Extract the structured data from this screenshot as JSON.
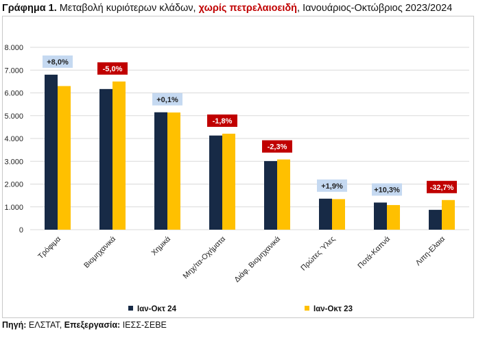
{
  "title": {
    "prefix": "Γράφημα 1.",
    "part1": " Μεταβολή κυριότερων κλάδων, ",
    "highlight": "χωρίς πετρελαιοειδή",
    "part2": ", Ιανουάριος-Οκτώβριος 2023/2024"
  },
  "source": {
    "label1": "Πηγή:",
    "value1": " ΕΛΣΤΑΤ, ",
    "label2": "Επεξεργασία:",
    "value2": " ΙΕΣΣ-ΣΕΒΕ"
  },
  "colors": {
    "series_2024": "#172a46",
    "series_2023": "#ffc000",
    "badge_positive_bg": "#c5d9f1",
    "badge_negative_bg": "#c00000",
    "grid": "#d9d9d9"
  },
  "chart_data": {
    "type": "bar",
    "categories": [
      "Τρόφιμα",
      "Βιομηχανικά",
      "Χημικά",
      "Μηχ/τα-Οχήματα",
      "Διάφ. Βιομηχανικά",
      "Πρώτες Ύλες",
      "Ποτά-Καπνά",
      "Λιπη-Ελαια"
    ],
    "series": [
      {
        "name": "Ιαν-Οκτ 24",
        "values": [
          6800,
          6170,
          5150,
          4130,
          3010,
          1360,
          1190,
          870
        ]
      },
      {
        "name": "Ιαν-Οκτ 23",
        "values": [
          6300,
          6500,
          5140,
          4210,
          3080,
          1340,
          1080,
          1300
        ]
      }
    ],
    "changes": [
      "+8,0%",
      "-5,0%",
      "+0,1%",
      "-1,8%",
      "-2,3%",
      "+1,9%",
      "+10,3%",
      "-32,7%"
    ],
    "y_ticks": [
      "0",
      "1.000",
      "2.000",
      "3.000",
      "4.000",
      "5.000",
      "6.000",
      "7.000",
      "8.000"
    ],
    "ylim": [
      0,
      8000
    ],
    "grid": true,
    "legend_position": "bottom"
  }
}
